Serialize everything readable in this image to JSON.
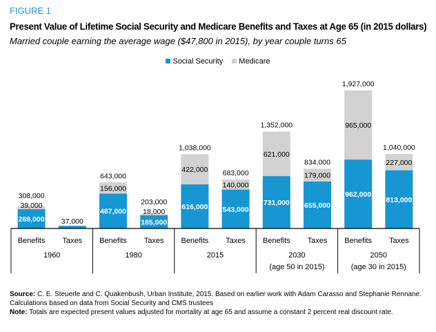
{
  "figure_label": "FIGURE 1",
  "chart_data": {
    "type": "bar",
    "title": "Present Value of Lifetime Social Security and Medicare Benefits and Taxes at Age 65 (in 2015 dollars)",
    "subtitle": "Married couple earning the average wage ($47,800 in 2015), by year couple turns 65",
    "stacked": true,
    "legend": {
      "placement": "top-center",
      "entries": [
        "Social Security",
        "Medicare"
      ]
    },
    "colors": {
      "Social Security": "#1696d2",
      "Medicare": "#d2d2d2"
    },
    "groups": [
      {
        "year": "1960",
        "note": ""
      },
      {
        "year": "1980",
        "note": ""
      },
      {
        "year": "2015",
        "note": ""
      },
      {
        "year": "2030",
        "note": "(age 50 in 2015)"
      },
      {
        "year": "2050",
        "note": "(age 30 in 2015)"
      }
    ],
    "categories": [
      "Benefits",
      "Taxes",
      "Benefits",
      "Taxes",
      "Benefits",
      "Taxes",
      "Benefits",
      "Taxes",
      "Benefits",
      "Taxes"
    ],
    "series": [
      {
        "name": "Social Security",
        "values": [
          269000,
          37000,
          487000,
          185000,
          616000,
          543000,
          731000,
          655000,
          962000,
          813000
        ],
        "labels": [
          "269,000",
          "37,000",
          "487,000",
          "185,000",
          "616,000",
          "543,000",
          "731,000",
          "655,000",
          "962,000",
          "813,000"
        ]
      },
      {
        "name": "Medicare",
        "values": [
          39000,
          0,
          156000,
          18000,
          422000,
          140000,
          621000,
          179000,
          965000,
          227000
        ],
        "labels": [
          "39,000",
          "",
          "156,000",
          "18,000",
          "422,000",
          "140,000",
          "621,000",
          "179,000",
          "965,000",
          "227,000"
        ]
      }
    ],
    "totals": [
      "308,000",
      "",
      "643,000",
      "203,000",
      "1,038,000",
      "683,000",
      "1,352,000",
      "834,000",
      "1,927,000",
      "1,040,000"
    ],
    "ylim": [
      0,
      1927000
    ]
  },
  "notes": {
    "source_label": "Source:",
    "source_text": " C. E. Steuerle and C. Quakenbush, Urban Institute, 2015. Based on earlier work with Adam Carasso and Stephanie Rennane. Calculations based on data from Social Security and CMS trustees",
    "note_label": "Note:",
    "note_text": " Totals are expected present values adjusted for mortality at age 65 and assume a constant 2 percent real discount rate."
  }
}
